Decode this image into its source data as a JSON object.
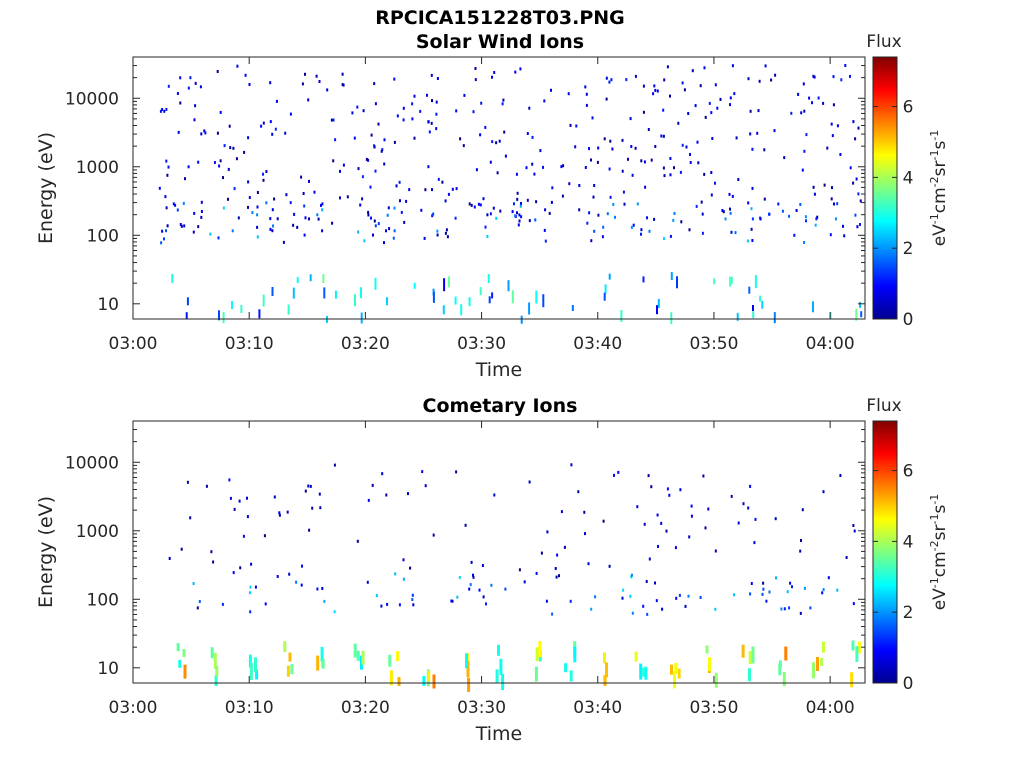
{
  "figure_title": "RPCICA151228T03.PNG",
  "chart_data": [
    {
      "type": "heatmap",
      "title": "Solar Wind Ions",
      "xlabel": "Time",
      "ylabel": "Energy (eV)",
      "x_ticks": [
        "03:00",
        "03:10",
        "03:20",
        "03:30",
        "03:40",
        "03:50",
        "04:00"
      ],
      "xlim_minutes": [
        0,
        63
      ],
      "y_scale": "log",
      "y_ticks": [
        "10",
        "100",
        "1000",
        "10000"
      ],
      "ylim": [
        6,
        40000
      ],
      "colorbar": {
        "title": "Flux",
        "label": "eV-1cm-2sr-1s-1",
        "ticks": [
          "0",
          "2",
          "4",
          "6"
        ],
        "range": [
          0,
          7.4
        ],
        "colormap": "jet"
      },
      "dominant_features": "sparse low-flux (0-1.5) points scattered 100-30000 eV from 03:02 to 04:03; brighter (2-3.5) short vertical streaks below 30 eV"
    },
    {
      "type": "heatmap",
      "title": "Cometary Ions",
      "xlabel": "Time",
      "ylabel": "Energy (eV)",
      "x_ticks": [
        "03:00",
        "03:10",
        "03:20",
        "03:30",
        "03:40",
        "03:50",
        "04:00"
      ],
      "xlim_minutes": [
        0,
        63
      ],
      "y_scale": "log",
      "y_ticks": [
        "10",
        "100",
        "1000",
        "10000"
      ],
      "ylim": [
        6,
        40000
      ],
      "colorbar": {
        "title": "Flux",
        "label": "eV-1cm-2sr-1s-1",
        "ticks": [
          "0",
          "2",
          "4",
          "6"
        ],
        "range": [
          0,
          7.4
        ],
        "colormap": "jet"
      },
      "dominant_features": "quasi-periodic bursts below 30 eV roughly every 3 minutes with flux 3-5.5; sparse low-flux points up to 10000 eV"
    }
  ]
}
